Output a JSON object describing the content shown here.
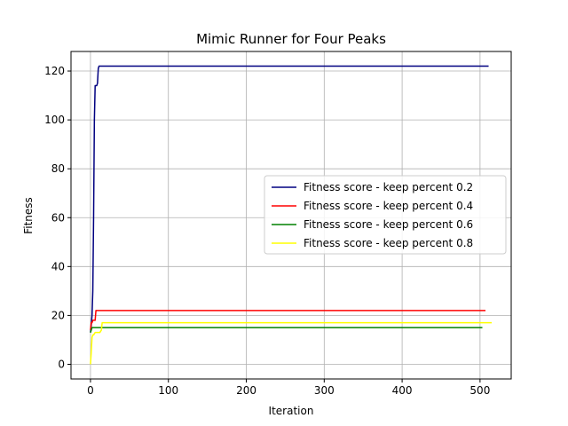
{
  "chart_data": {
    "type": "line",
    "title": "Mimic Runner for Four Peaks",
    "xlabel": "Iteration",
    "ylabel": "Fitness",
    "xlim": [
      -25,
      540
    ],
    "ylim": [
      -6,
      128
    ],
    "xticks": [
      0,
      100,
      200,
      300,
      400,
      500
    ],
    "yticks": [
      0,
      20,
      40,
      60,
      80,
      100,
      120
    ],
    "grid": true,
    "legend_position": "center-right",
    "series": [
      {
        "name": "Fitness score - keep percent 0.2",
        "color": "#000080",
        "x": [
          0,
          1,
          2,
          3,
          4,
          5,
          6,
          7,
          8,
          9,
          10,
          11,
          511
        ],
        "y": [
          13,
          16,
          20,
          30,
          60,
          100,
          114,
          114,
          114,
          115,
          121,
          122,
          122
        ]
      },
      {
        "name": "Fitness score - keep percent 0.4",
        "color": "#ff0000",
        "x": [
          0,
          1,
          2,
          3,
          4,
          5,
          6,
          7,
          8,
          507
        ],
        "y": [
          14,
          17,
          17,
          18,
          18,
          18,
          18,
          22,
          22,
          22
        ]
      },
      {
        "name": "Fitness score - keep percent 0.6",
        "color": "#008000",
        "x": [
          0,
          1,
          2,
          3,
          503
        ],
        "y": [
          13,
          14,
          15,
          15,
          15
        ]
      },
      {
        "name": "Fitness score - keep percent 0.8",
        "color": "#ffff00",
        "x": [
          0,
          1,
          2,
          3,
          4,
          6,
          8,
          10,
          12,
          14,
          15,
          515
        ],
        "y": [
          0,
          5,
          11,
          12,
          12,
          13,
          13,
          13,
          13,
          14,
          17,
          17
        ]
      }
    ]
  }
}
